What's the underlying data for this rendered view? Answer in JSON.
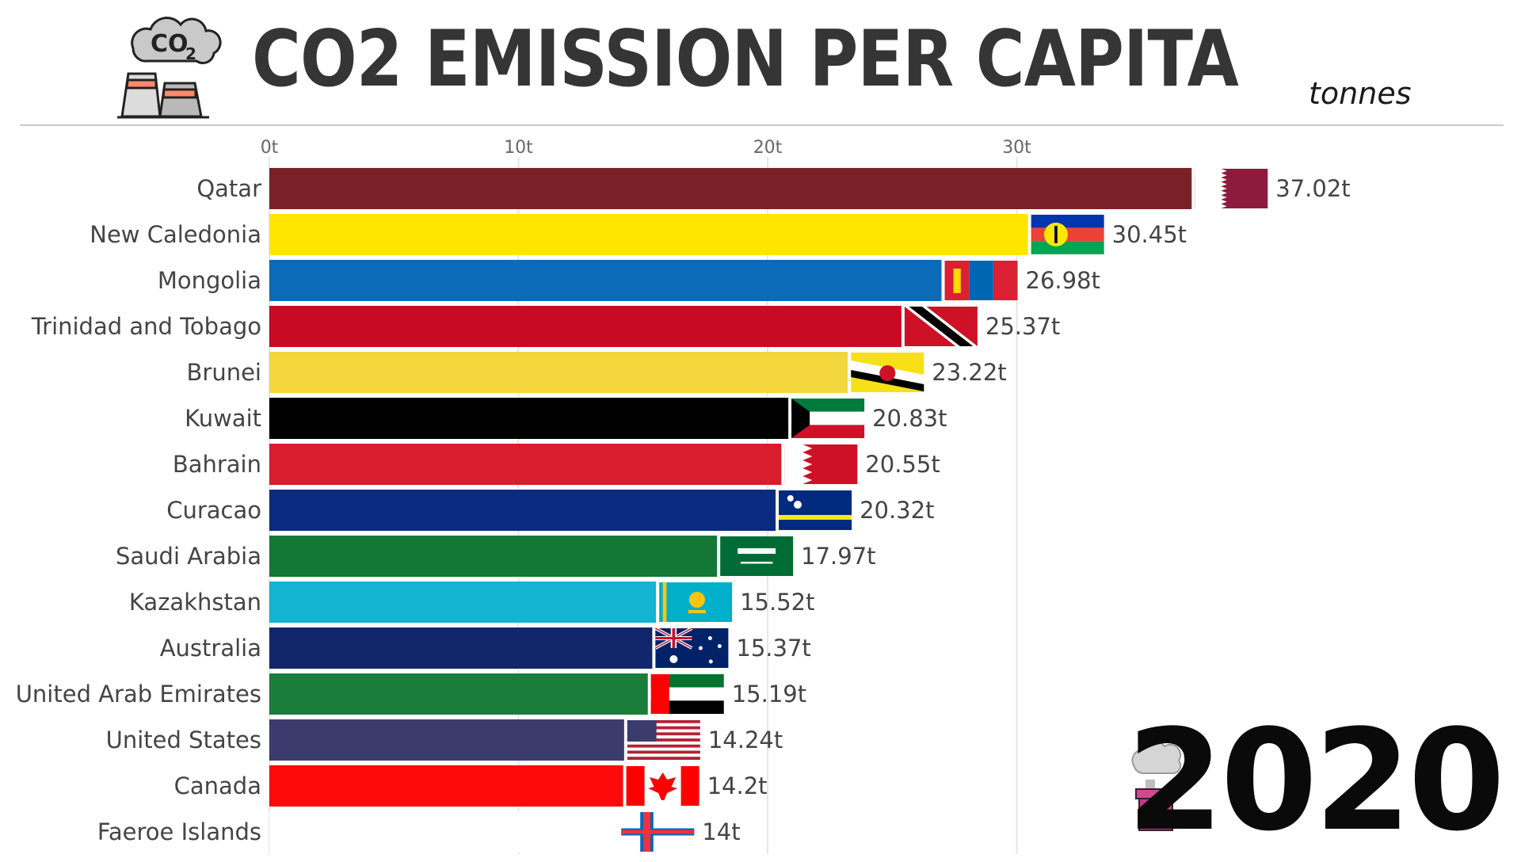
{
  "header": {
    "title": "CO2 EMISSION PER CAPITA",
    "unit": "tonnes",
    "logo_text": "CO",
    "logo_subscript": "2"
  },
  "year": "2020",
  "chart_data": {
    "type": "bar",
    "orientation": "horizontal",
    "title": "CO2 EMISSION PER CAPITA",
    "unit": "tonnes",
    "xlim": [
      0,
      40
    ],
    "xticks": [
      0,
      10,
      20,
      30
    ],
    "xtick_labels": [
      "0t",
      "10t",
      "20t",
      "30t"
    ],
    "categories": [
      "Qatar",
      "New Caledonia",
      "Mongolia",
      "Trinidad and Tobago",
      "Brunei",
      "Kuwait",
      "Bahrain",
      "Curacao",
      "Saudi Arabia",
      "Kazakhstan",
      "Australia",
      "United Arab Emirates",
      "United States",
      "Canada",
      "Faeroe Islands"
    ],
    "values": [
      37.02,
      30.45,
      26.98,
      25.37,
      23.22,
      20.83,
      20.55,
      20.32,
      17.97,
      15.52,
      15.37,
      15.19,
      14.24,
      14.2,
      14
    ],
    "value_labels": [
      "37.02t",
      "30.45t",
      "26.98t",
      "25.37t",
      "23.22t",
      "20.83t",
      "20.55t",
      "20.32t",
      "17.97t",
      "15.52t",
      "15.37t",
      "15.19t",
      "14.24t",
      "14.2t",
      "14t"
    ],
    "colors": [
      "#7a2128",
      "#ffe600",
      "#0b6bb8",
      "#c80a24",
      "#f3d73d",
      "#000000",
      "#d81d2f",
      "#0a2b80",
      "#137836",
      "#13b4d2",
      "#11266b",
      "#1a7d3a",
      "#3b3b6d",
      "#ff0a0a",
      "#ffffff"
    ],
    "flags": [
      "qatar-flag",
      "new-caledonia-flag",
      "mongolia-flag",
      "trinidad-and-tobago-flag",
      "brunei-flag",
      "kuwait-flag",
      "bahrain-flag",
      "curacao-flag",
      "saudi-arabia-flag",
      "kazakhstan-flag",
      "australia-flag",
      "uae-flag",
      "usa-flag",
      "canada-flag",
      "faroe-flag"
    ]
  }
}
